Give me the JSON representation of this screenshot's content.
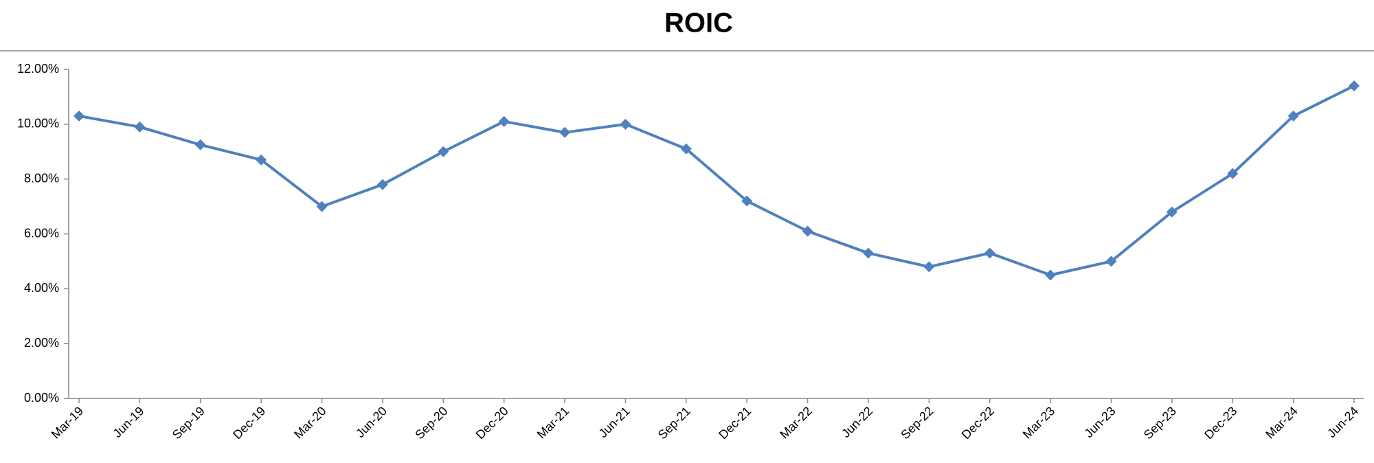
{
  "chart_data": {
    "type": "line",
    "title": "ROIC",
    "categories": [
      "Mar-19",
      "Jun-19",
      "Sep-19",
      "Dec-19",
      "Mar-20",
      "Jun-20",
      "Sep-20",
      "Dec-20",
      "Mar-21",
      "Jun-21",
      "Sep-21",
      "Dec-21",
      "Mar-22",
      "Jun-22",
      "Sep-22",
      "Dec-22",
      "Mar-23",
      "Jun-23",
      "Sep-23",
      "Dec-23",
      "Mar-24",
      "Jun-24"
    ],
    "values": [
      10.3,
      9.9,
      9.25,
      8.7,
      7.0,
      7.8,
      9.0,
      10.1,
      9.7,
      10.0,
      9.1,
      7.2,
      6.1,
      5.3,
      4.8,
      5.3,
      4.5,
      5.0,
      6.8,
      8.2,
      10.3,
      11.4
    ],
    "color": "#4f81bd",
    "ylim": [
      0,
      12
    ],
    "yticks": [
      {
        "value": 0,
        "label": "0.00%"
      },
      {
        "value": 2,
        "label": "2.00%"
      },
      {
        "value": 4,
        "label": "4.00%"
      },
      {
        "value": 6,
        "label": "6.00%"
      },
      {
        "value": 8,
        "label": "8.00%"
      },
      {
        "value": 10,
        "label": "10.00%"
      },
      {
        "value": 12,
        "label": "12.00%"
      }
    ],
    "grid": false
  }
}
